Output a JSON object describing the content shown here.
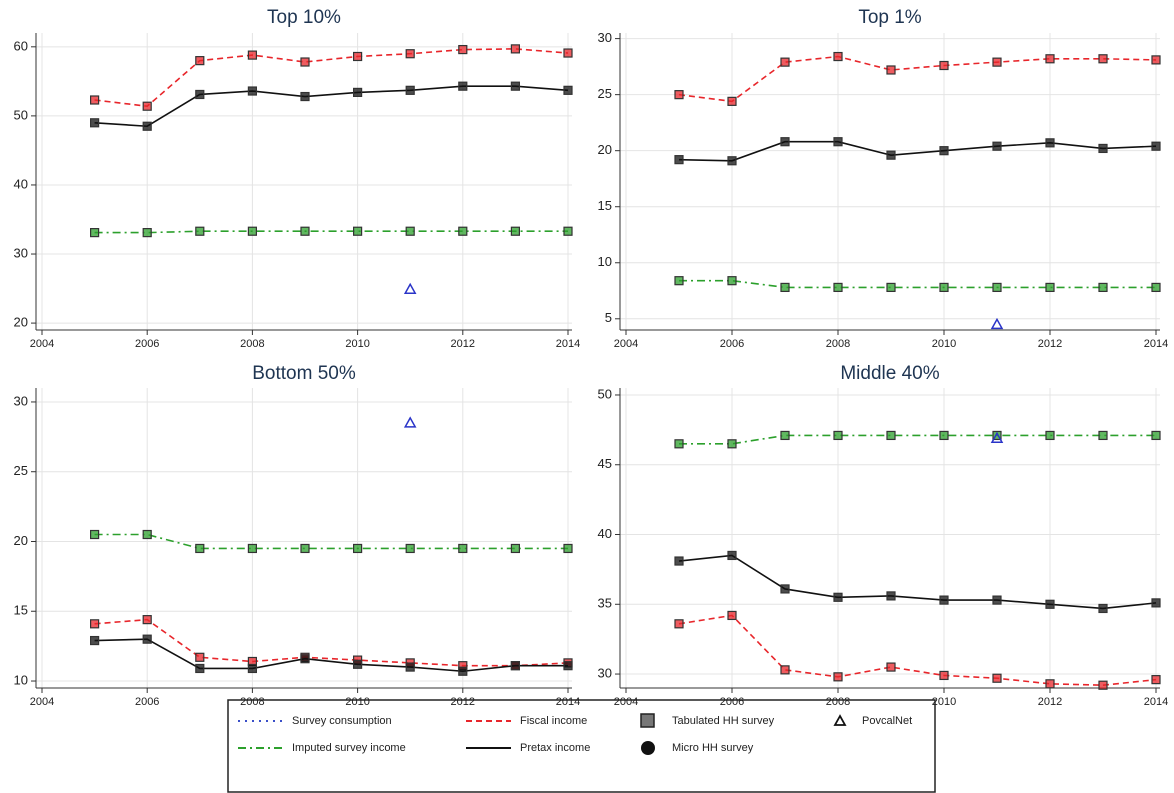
{
  "chart_data": [
    {
      "type": "line",
      "title": "Top 10%",
      "x": [
        2005,
        2006,
        2007,
        2008,
        2009,
        2010,
        2011,
        2012,
        2013,
        2014
      ],
      "xlim": [
        2004,
        2014
      ],
      "xticks": [
        2004,
        2006,
        2008,
        2010,
        2012,
        2014
      ],
      "ylim": [
        19,
        62
      ],
      "yticks": [
        20,
        30,
        40,
        50,
        60
      ],
      "grid": true,
      "series": [
        {
          "name": "Fiscal income",
          "color": "#e8262b",
          "style": "dashed",
          "values": [
            52.3,
            51.4,
            58.0,
            58.8,
            57.8,
            58.6,
            59.0,
            59.6,
            59.7,
            59.1
          ]
        },
        {
          "name": "Pretax income",
          "color": "#111111",
          "style": "solid",
          "values": [
            49.0,
            48.5,
            53.1,
            53.6,
            52.8,
            53.4,
            53.7,
            54.3,
            54.3,
            53.7
          ]
        },
        {
          "name": "Imputed survey income",
          "color": "#2ca02c",
          "style": "dash-dot",
          "values": [
            33.1,
            33.1,
            33.3,
            33.3,
            33.3,
            33.3,
            33.3,
            33.3,
            33.3,
            33.3
          ]
        },
        {
          "name": "PovcalNet",
          "color": "#2a34c8",
          "style": "triangle",
          "values": [
            null,
            null,
            null,
            null,
            null,
            null,
            24.9,
            null,
            null,
            null
          ]
        }
      ]
    },
    {
      "type": "line",
      "title": "Top 1%",
      "x": [
        2005,
        2006,
        2007,
        2008,
        2009,
        2010,
        2011,
        2012,
        2013,
        2014
      ],
      "xlim": [
        2004,
        2014
      ],
      "xticks": [
        2004,
        2006,
        2008,
        2010,
        2012,
        2014
      ],
      "ylim": [
        4,
        30.5
      ],
      "yticks": [
        5,
        10,
        15,
        20,
        25,
        30
      ],
      "grid": true,
      "series": [
        {
          "name": "Fiscal income",
          "color": "#e8262b",
          "style": "dashed",
          "values": [
            25.0,
            24.4,
            27.9,
            28.4,
            27.2,
            27.6,
            27.9,
            28.2,
            28.2,
            28.1
          ]
        },
        {
          "name": "Pretax income",
          "color": "#111111",
          "style": "solid",
          "values": [
            19.2,
            19.1,
            20.8,
            20.8,
            19.6,
            20.0,
            20.4,
            20.7,
            20.2,
            20.4
          ]
        },
        {
          "name": "Imputed survey income",
          "color": "#2ca02c",
          "style": "dash-dot",
          "values": [
            8.4,
            8.4,
            7.8,
            7.8,
            7.8,
            7.8,
            7.8,
            7.8,
            7.8,
            7.8
          ]
        },
        {
          "name": "PovcalNet",
          "color": "#2a34c8",
          "style": "triangle",
          "values": [
            null,
            null,
            null,
            null,
            null,
            null,
            4.5,
            null,
            null,
            null
          ]
        }
      ]
    },
    {
      "type": "line",
      "title": "Bottom 50%",
      "x": [
        2005,
        2006,
        2007,
        2008,
        2009,
        2010,
        2011,
        2012,
        2013,
        2014
      ],
      "xlim": [
        2004,
        2014
      ],
      "xticks": [
        2004,
        2006,
        2008,
        2010,
        2012,
        2014
      ],
      "ylim": [
        9.5,
        31
      ],
      "yticks": [
        10,
        15,
        20,
        25,
        30
      ],
      "grid": true,
      "series": [
        {
          "name": "Fiscal income",
          "color": "#e8262b",
          "style": "dashed",
          "values": [
            14.1,
            14.4,
            11.7,
            11.4,
            11.7,
            11.5,
            11.3,
            11.1,
            11.1,
            11.3
          ]
        },
        {
          "name": "Pretax income",
          "color": "#111111",
          "style": "solid",
          "values": [
            12.9,
            13.0,
            10.9,
            10.9,
            11.6,
            11.2,
            11.0,
            10.7,
            11.1,
            11.1
          ]
        },
        {
          "name": "Imputed survey income",
          "color": "#2ca02c",
          "style": "dash-dot",
          "values": [
            20.5,
            20.5,
            19.5,
            19.5,
            19.5,
            19.5,
            19.5,
            19.5,
            19.5,
            19.5
          ]
        },
        {
          "name": "PovcalNet",
          "color": "#2a34c8",
          "style": "triangle",
          "values": [
            null,
            null,
            null,
            null,
            null,
            null,
            28.5,
            null,
            null,
            null
          ]
        }
      ]
    },
    {
      "type": "line",
      "title": "Middle 40%",
      "x": [
        2005,
        2006,
        2007,
        2008,
        2009,
        2010,
        2011,
        2012,
        2013,
        2014
      ],
      "xlim": [
        2004,
        2014
      ],
      "xticks": [
        2004,
        2006,
        2008,
        2010,
        2012,
        2014
      ],
      "ylim": [
        29,
        50.5
      ],
      "yticks": [
        30,
        35,
        40,
        45,
        50
      ],
      "grid": true,
      "series": [
        {
          "name": "Fiscal income",
          "color": "#e8262b",
          "style": "dashed",
          "values": [
            33.6,
            34.2,
            30.3,
            29.8,
            30.5,
            29.9,
            29.7,
            29.3,
            29.2,
            29.6
          ]
        },
        {
          "name": "Pretax income",
          "color": "#111111",
          "style": "solid",
          "values": [
            38.1,
            38.5,
            36.1,
            35.5,
            35.6,
            35.3,
            35.3,
            35.0,
            34.7,
            35.1
          ]
        },
        {
          "name": "Imputed survey income",
          "color": "#2ca02c",
          "style": "dash-dot",
          "values": [
            46.5,
            46.5,
            47.1,
            47.1,
            47.1,
            47.1,
            47.1,
            47.1,
            47.1,
            47.1
          ]
        },
        {
          "name": "PovcalNet",
          "color": "#2a34c8",
          "style": "triangle",
          "values": [
            null,
            null,
            null,
            null,
            null,
            null,
            46.9,
            null,
            null,
            null
          ]
        }
      ]
    }
  ],
  "legend": {
    "survey_consumption": "Survey consumption",
    "tabulated": "Tabulated HH survey",
    "micro": "Micro HH survey"
  }
}
